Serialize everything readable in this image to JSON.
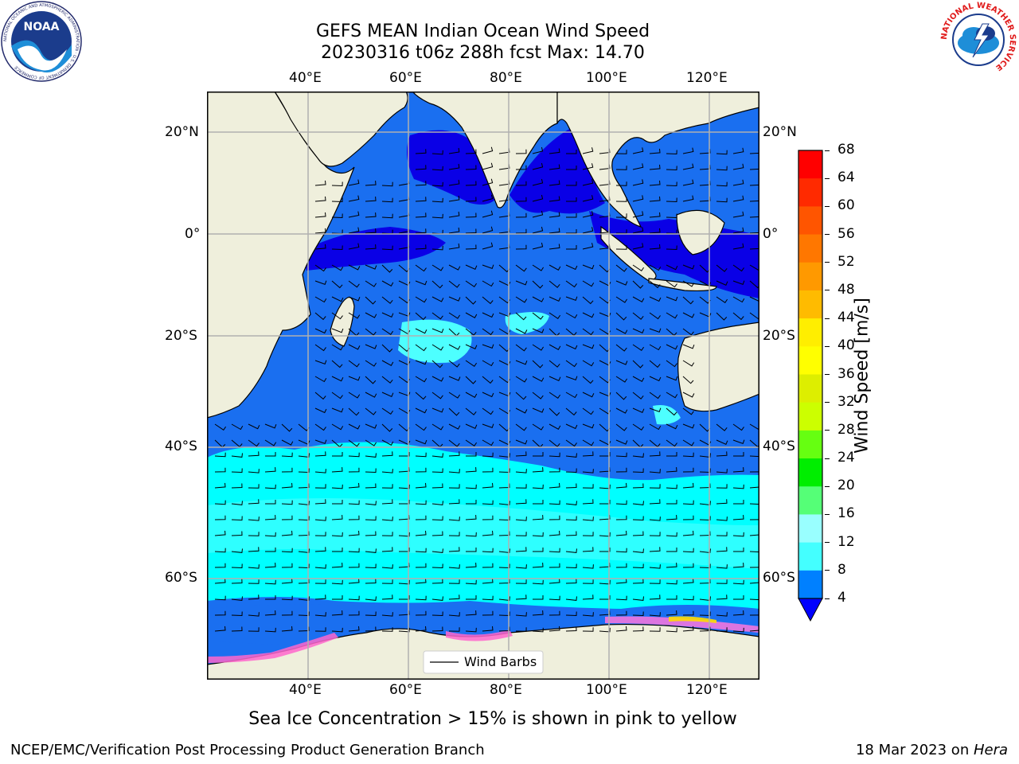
{
  "title": {
    "line1": "GEFS MEAN Indian Ocean Wind Speed",
    "line2": "20230316 t06z 288h fcst   Max: 14.70"
  },
  "map": {
    "lon_ticks": [
      "40°E",
      "60°E",
      "80°E",
      "100°E",
      "120°E"
    ],
    "lat_ticks": [
      "20°N",
      "0°",
      "20°S",
      "40°S",
      "60°S"
    ],
    "lon_range": [
      20,
      130
    ],
    "lat_range": [
      -73,
      27
    ],
    "legend_label": "Wind Barbs",
    "ocean_colors": {
      "4-8": "#1a6ff0",
      "0-4": "#0a00e6",
      "8-12": "#00ffff",
      "12-16": "#4dffff"
    },
    "land_color": "#efefdc"
  },
  "colorbar": {
    "label": "Wind Speed [m/s]",
    "ticks": [
      "68",
      "64",
      "60",
      "56",
      "52",
      "48",
      "44",
      "40",
      "36",
      "32",
      "28",
      "24",
      "20",
      "16",
      "12",
      "8",
      "4"
    ],
    "colors": [
      "#ff0000",
      "#ff2a00",
      "#ff5500",
      "#ff7700",
      "#ff9900",
      "#ffbb00",
      "#ffee00",
      "#ffff00",
      "#ddee00",
      "#ccff00",
      "#66ff11",
      "#00ee00",
      "#00cc44",
      "#55ff77",
      "#99ffff",
      "#44ffff",
      "#00ffff",
      "#0080ff"
    ],
    "under_color": "#0000ff"
  },
  "caption": "Sea Ice Concentration > 15% is shown in pink to yellow",
  "footer": {
    "left": "NCEP/EMC/Verification Post Processing Product Generation Branch",
    "right_prefix": "18 Mar 2023 on ",
    "right_italic": "Hera"
  },
  "logos": {
    "noaa": "NOAA",
    "nws": "NATIONAL WEATHER SERVICE",
    "noaa_ring": "NATIONAL OCEANIC AND ATMOSPHERIC ADMINISTRATION · U.S. DEPARTMENT OF COMMERCE"
  }
}
